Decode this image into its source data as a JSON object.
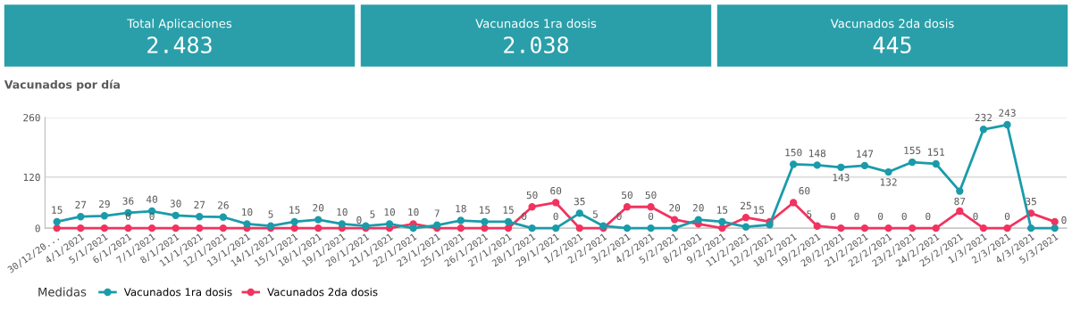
{
  "chart_data": [
    {
      "type": "other",
      "title": "Total Aplicaciones",
      "annotations": [
        "2.483"
      ]
    },
    {
      "type": "other",
      "title": "Vacunados 1ra dosis",
      "annotations": [
        "2.038"
      ]
    },
    {
      "type": "other",
      "title": "Vacunados 2da dosis",
      "annotations": [
        "445"
      ]
    },
    {
      "type": "line",
      "title": "Vacunados por día",
      "legend_title": "Medidas",
      "legend": "bottom left",
      "grid": "y",
      "marker": "circle",
      "line_style": "solid",
      "categories": [
        "30/12/20...",
        "4/1/2021",
        "5/1/2021",
        "6/1/2021",
        "7/1/2021",
        "8/1/2021",
        "11/1/2021",
        "12/1/2021",
        "13/1/2021",
        "14/1/2021",
        "15/1/2021",
        "18/1/2021",
        "19/1/2021",
        "20/1/2021",
        "21/1/2021",
        "22/1/2021",
        "23/1/2021",
        "25/1/2021",
        "26/1/2021",
        "27/1/2021",
        "28/1/2021",
        "29/1/2021",
        "1/2/2021",
        "2/2/2021",
        "3/2/2021",
        "4/2/2021",
        "5/2/2021",
        "8/2/2021",
        "9/2/2021",
        "11/2/2021",
        "12/2/2021",
        "18/2/2021",
        "19/2/2021",
        "20/2/2021",
        "21/2/2021",
        "22/2/2021",
        "23/2/2021",
        "24/2/2021",
        "25/2/2021",
        "1/3/2021",
        "2/3/2021",
        "4/3/2021",
        "5/3/2021"
      ],
      "ylim": [
        0,
        260
      ],
      "yticks": [
        0,
        120,
        260
      ],
      "series": [
        {
          "name": "Vacunados 1ra dosis",
          "color": "#1a9baa",
          "values": [
            15,
            27,
            29,
            36,
            40,
            30,
            27,
            26,
            10,
            5,
            15,
            20,
            10,
            5,
            10,
            0,
            7,
            18,
            15,
            15,
            0,
            0,
            35,
            5,
            0,
            0,
            0,
            20,
            15,
            3,
            8,
            150,
            148,
            143,
            147,
            132,
            155,
            151,
            87,
            232,
            243,
            0,
            0
          ],
          "value_labels": [
            "15",
            "27",
            "29",
            "36",
            "40",
            "30",
            "27",
            "26",
            "10",
            "5",
            "15",
            "20",
            "10",
            "5",
            "10",
            null,
            "7",
            "18",
            "15",
            "15",
            "0",
            "0",
            "35",
            "5",
            "0",
            "0",
            null,
            "20",
            "15",
            null,
            null,
            "150",
            "148",
            "143",
            "147",
            "132",
            "155",
            "151",
            "87",
            "232",
            "243",
            null,
            "0"
          ]
        },
        {
          "name": "Vacunados 2da dosis",
          "color": "#f2335f",
          "values": [
            0,
            0,
            0,
            0,
            0,
            0,
            0,
            0,
            0,
            0,
            0,
            0,
            0,
            0,
            0,
            10,
            0,
            0,
            0,
            0,
            50,
            60,
            0,
            0,
            50,
            50,
            20,
            10,
            0,
            25,
            15,
            60,
            5,
            0,
            0,
            0,
            0,
            0,
            40,
            0,
            0,
            35,
            15
          ],
          "value_labels": [
            null,
            null,
            null,
            "0",
            "0",
            null,
            null,
            null,
            null,
            null,
            null,
            null,
            null,
            "0",
            null,
            "10",
            null,
            null,
            null,
            null,
            "50",
            "60",
            null,
            null,
            "50",
            "50",
            "20",
            null,
            null,
            "25",
            "15",
            "60",
            "5",
            "0",
            "0",
            "0",
            "0",
            "0",
            null,
            "0",
            "0",
            "35",
            null
          ]
        }
      ]
    }
  ]
}
